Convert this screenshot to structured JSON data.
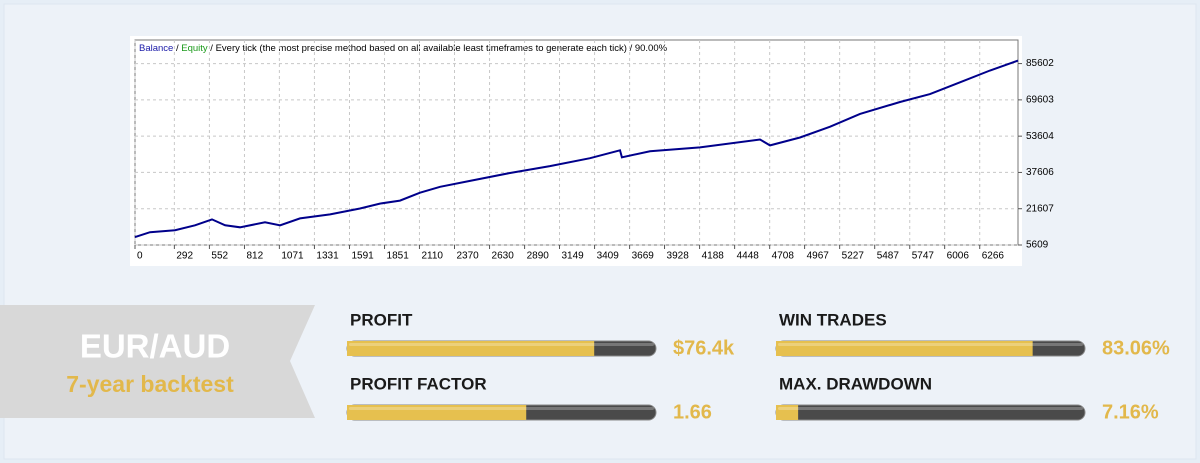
{
  "chart_data": {
    "type": "line",
    "title": [
      {
        "text": "Balance",
        "color": "#1a1aa8"
      },
      {
        "text": " / ",
        "color": "#000000"
      },
      {
        "text": "Equity",
        "color": "#1a9a1a"
      },
      {
        "text": " / Every tick (the most precise method based on all available least timeframes to generate each tick) / 90.00%",
        "color": "#000000"
      }
    ],
    "x": [
      0,
      111,
      297,
      445,
      571,
      668,
      779,
      964,
      1076,
      1224,
      1447,
      1669,
      1817,
      1966,
      2114,
      2263,
      2485,
      2782,
      3078,
      3375,
      3598,
      3612,
      3820,
      4191,
      4636,
      4710,
      4933,
      5156,
      5378,
      5675,
      5897,
      6120,
      6342,
      6550
    ],
    "values": [
      9090,
      11260,
      12130,
      14300,
      16910,
      14300,
      13430,
      15610,
      14300,
      17350,
      19090,
      21700,
      23870,
      25180,
      28650,
      31260,
      33870,
      37350,
      40390,
      43870,
      47350,
      44300,
      46920,
      48650,
      52130,
      49520,
      53000,
      57780,
      63430,
      68650,
      72130,
      77350,
      82570,
      86920
    ],
    "color": "#00008b",
    "xlim": [
      0,
      6550
    ],
    "xticks": [
      0,
      292,
      552,
      812,
      1071,
      1331,
      1591,
      1851,
      2110,
      2370,
      2630,
      2890,
      3149,
      3409,
      3669,
      3928,
      4188,
      4448,
      4708,
      4967,
      5227,
      5487,
      5747,
      6006,
      6266
    ],
    "ylim": [
      5609,
      96000
    ],
    "yticks": [
      5609,
      21607,
      37606,
      53604,
      69603,
      85602
    ],
    "grid": true
  },
  "banner": {
    "title": "EUR/AUD",
    "subtitle": "7-year backtest"
  },
  "stats": [
    {
      "name": "PROFIT",
      "display": "$76.4k",
      "fill": 80
    },
    {
      "name": "WIN TRADES",
      "display": "83.06%",
      "fill": 83.06
    },
    {
      "name": "PROFIT FACTOR",
      "display": "1.66",
      "fill": 58
    },
    {
      "name": "MAX. DRAWDOWN",
      "display": "7.16%",
      "fill": 7.16
    }
  ]
}
